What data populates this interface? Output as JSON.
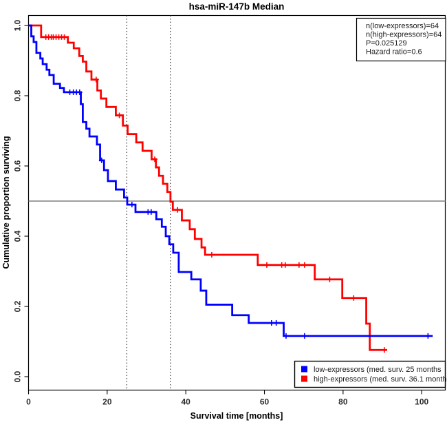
{
  "title": "hsa-miR-147b Median",
  "stats_box": {
    "lines": [
      "n(low-expressors)=64",
      "n(high-expressors)=64",
      "P=0.025129",
      "Hazard ratio=0.6"
    ]
  },
  "legend": {
    "items": [
      {
        "label": "low-expressors (med. surv. 25 months",
        "color": "#0000ff"
      },
      {
        "label": "high-expressors (med. surv. 36.1 months)",
        "color": "#ff0000"
      }
    ]
  },
  "chart_data": {
    "type": "line",
    "subtype": "kaplan-meier-step",
    "title": "hsa-miR-147b Median",
    "xlabel": "Survival time [months]",
    "ylabel": "Cumulative proportion surviving",
    "xlim": [
      0,
      106
    ],
    "ylim": [
      0,
      1.03
    ],
    "x_ticks": [
      0,
      20,
      40,
      60,
      80,
      100
    ],
    "y_ticks": [
      0.0,
      0.2,
      0.4,
      0.6,
      0.8,
      1.0
    ],
    "grid": false,
    "legend_position": "bottom-right",
    "reference_lines": {
      "horizontal_y": 0.5,
      "vertical_x": [
        25,
        36.1
      ],
      "h_color": "#7f7f7f",
      "v_color": "#333333"
    },
    "series": [
      {
        "name": "low-expressors",
        "color": "#0000ff",
        "median_survival_months": 25,
        "n": 64,
        "end_time": 102.8,
        "steps": [
          [
            0,
            1.0
          ],
          [
            0.7,
            0.969
          ],
          [
            1.3,
            0.953
          ],
          [
            2.0,
            0.922
          ],
          [
            3.0,
            0.906
          ],
          [
            3.6,
            0.89
          ],
          [
            4.6,
            0.874
          ],
          [
            5.3,
            0.859
          ],
          [
            6.4,
            0.834
          ],
          [
            8.0,
            0.822
          ],
          [
            9.0,
            0.81
          ],
          [
            13.3,
            0.776
          ],
          [
            13.8,
            0.725
          ],
          [
            14.7,
            0.706
          ],
          [
            15.5,
            0.684
          ],
          [
            17.4,
            0.661
          ],
          [
            18.2,
            0.616
          ],
          [
            19.2,
            0.588
          ],
          [
            20.2,
            0.557
          ],
          [
            22.2,
            0.533
          ],
          [
            24.3,
            0.51
          ],
          [
            25.1,
            0.49
          ],
          [
            27.2,
            0.469
          ],
          [
            32.5,
            0.448
          ],
          [
            33.9,
            0.427
          ],
          [
            34.9,
            0.4
          ],
          [
            35.8,
            0.377
          ],
          [
            36.8,
            0.353
          ],
          [
            38.2,
            0.298
          ],
          [
            41.4,
            0.277
          ],
          [
            43.8,
            0.245
          ],
          [
            45.2,
            0.205
          ],
          [
            51.8,
            0.175
          ],
          [
            56.0,
            0.153
          ],
          [
            64.9,
            0.116
          ]
        ],
        "censors": [
          [
            10.5,
            0.81
          ],
          [
            11.4,
            0.81
          ],
          [
            12.2,
            0.81
          ],
          [
            13.0,
            0.81
          ],
          [
            18.6,
            0.616
          ],
          [
            26.3,
            0.49
          ],
          [
            30.4,
            0.469
          ],
          [
            31.2,
            0.469
          ],
          [
            61.8,
            0.153
          ],
          [
            63.0,
            0.153
          ],
          [
            65.5,
            0.116
          ],
          [
            70.2,
            0.116
          ],
          [
            101.6,
            0.116
          ]
        ]
      },
      {
        "name": "high-expressors",
        "color": "#ff0000",
        "median_survival_months": 36.1,
        "n": 64,
        "end_time": 91.2,
        "steps": [
          [
            0,
            1.0
          ],
          [
            3.2,
            0.967
          ],
          [
            10.0,
            0.951
          ],
          [
            11.5,
            0.935
          ],
          [
            12.9,
            0.913
          ],
          [
            13.8,
            0.897
          ],
          [
            14.7,
            0.869
          ],
          [
            16.0,
            0.846
          ],
          [
            17.5,
            0.815
          ],
          [
            18.4,
            0.792
          ],
          [
            19.8,
            0.768
          ],
          [
            22.2,
            0.744
          ],
          [
            24.0,
            0.715
          ],
          [
            25.2,
            0.691
          ],
          [
            27.4,
            0.667
          ],
          [
            29.0,
            0.643
          ],
          [
            31.3,
            0.619
          ],
          [
            32.4,
            0.596
          ],
          [
            33.2,
            0.572
          ],
          [
            34.2,
            0.549
          ],
          [
            35.3,
            0.526
          ],
          [
            36.1,
            0.498
          ],
          [
            36.7,
            0.475
          ],
          [
            39.0,
            0.445
          ],
          [
            41.0,
            0.42
          ],
          [
            42.3,
            0.392
          ],
          [
            44.0,
            0.368
          ],
          [
            44.9,
            0.347
          ],
          [
            58.3,
            0.318
          ],
          [
            72.8,
            0.277
          ],
          [
            79.8,
            0.224
          ],
          [
            85.9,
            0.151
          ],
          [
            86.8,
            0.076
          ]
        ],
        "censors": [
          [
            4.4,
            0.967
          ],
          [
            5.1,
            0.967
          ],
          [
            5.8,
            0.967
          ],
          [
            6.3,
            0.967
          ],
          [
            7.0,
            0.967
          ],
          [
            7.7,
            0.967
          ],
          [
            8.4,
            0.967
          ],
          [
            9.1,
            0.967
          ],
          [
            17.2,
            0.846
          ],
          [
            23.1,
            0.744
          ],
          [
            32.1,
            0.619
          ],
          [
            37.9,
            0.475
          ],
          [
            46.6,
            0.347
          ],
          [
            60.6,
            0.318
          ],
          [
            64.4,
            0.318
          ],
          [
            65.3,
            0.318
          ],
          [
            68.8,
            0.318
          ],
          [
            70.2,
            0.318
          ],
          [
            76.6,
            0.277
          ],
          [
            82.7,
            0.224
          ],
          [
            90.5,
            0.076
          ]
        ]
      }
    ]
  }
}
